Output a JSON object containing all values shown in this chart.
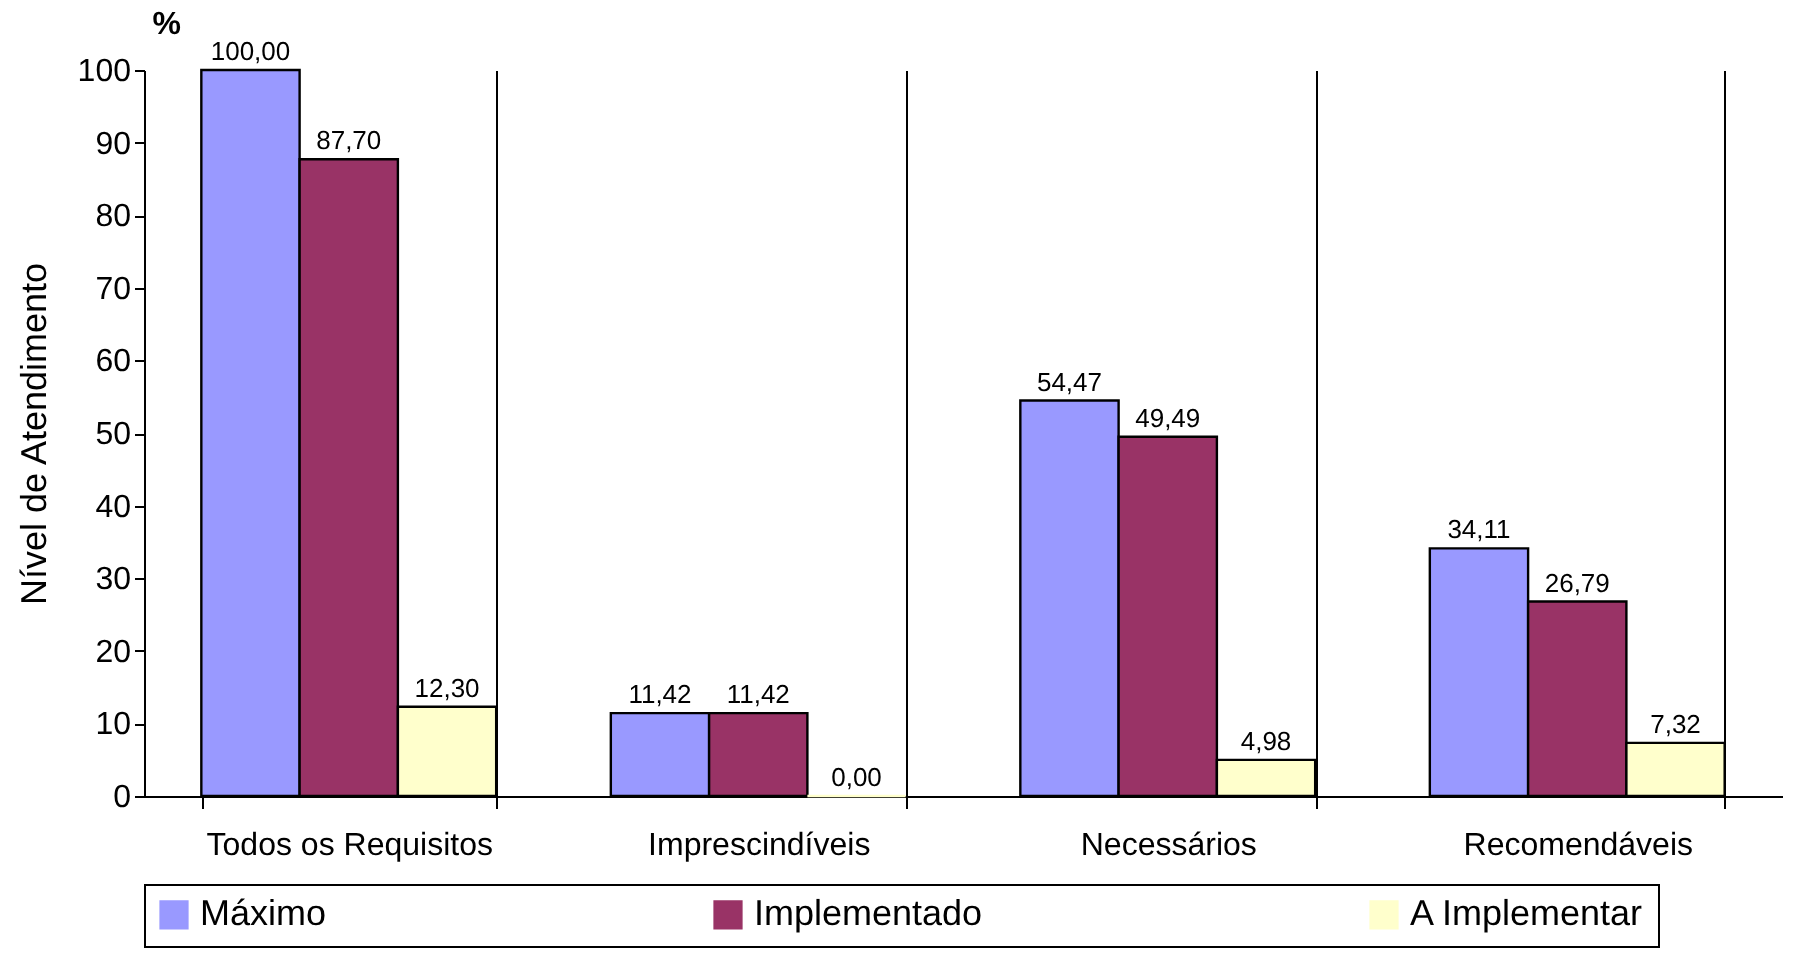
{
  "chart_data": {
    "type": "bar",
    "ylabel": "Nível de Atendimento",
    "annotations": [
      "%"
    ],
    "categories": [
      "Todos os Requisitos",
      "Imprescindíveis",
      "Necessários",
      "Recomendáveis"
    ],
    "series": [
      {
        "name": "Máximo",
        "color": "#9999ff",
        "values": [
          100,
          11.42,
          54.47,
          34.11
        ],
        "value_labels": [
          "100,00",
          "11,42",
          "54,47",
          "34,11"
        ]
      },
      {
        "name": "Implementado",
        "color": "#993366",
        "values": [
          87.7,
          11.42,
          49.49,
          26.79
        ],
        "value_labels": [
          "87,70",
          "11,42",
          "49,49",
          "26,79"
        ]
      },
      {
        "name": "A Implementar",
        "color": "#ffffcc",
        "values": [
          12.3,
          0,
          4.98,
          7.32
        ],
        "value_labels": [
          "12,30",
          "0,00",
          "4,98",
          "7,32"
        ]
      }
    ],
    "ylim": [
      0,
      100
    ],
    "yticks": [
      0,
      10,
      20,
      30,
      40,
      50,
      60,
      70,
      80,
      90,
      100
    ],
    "grid": "x",
    "legend": "bottom"
  }
}
